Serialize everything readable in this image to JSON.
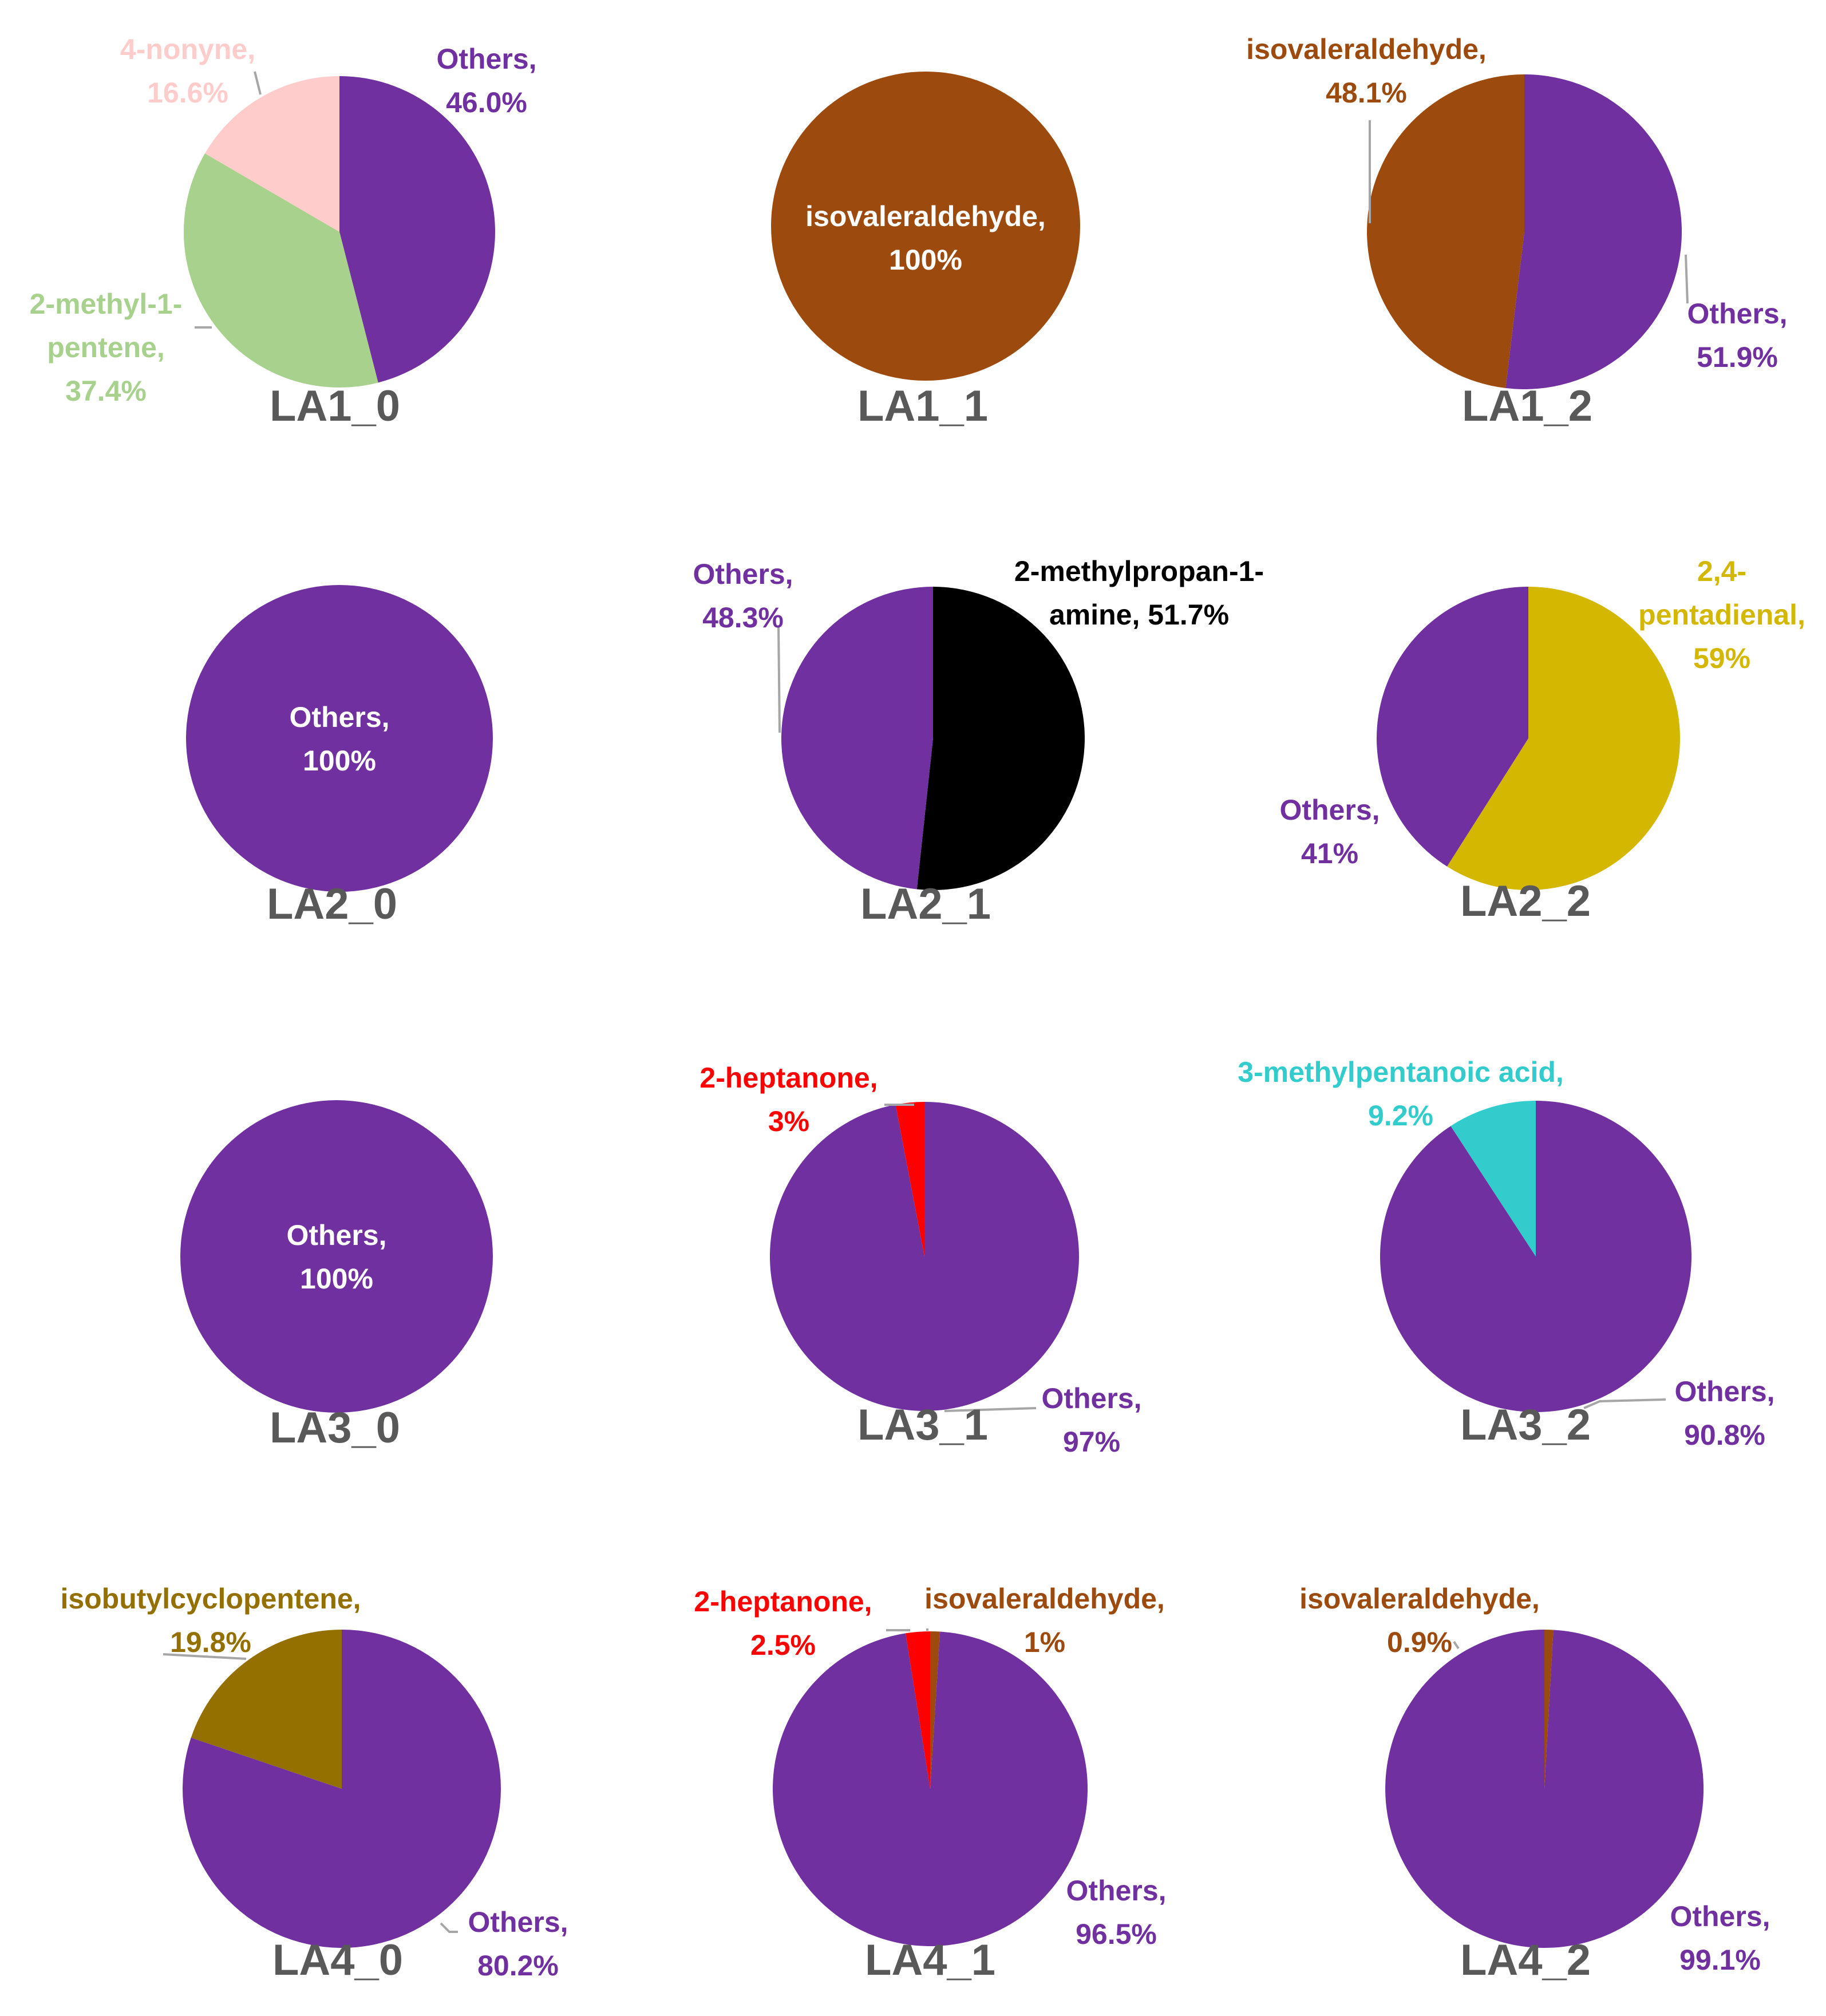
{
  "colors": {
    "Others": "#7030a0",
    "4-nonyne": "#ffcccc",
    "2-methyl-1-pentene": "#a9d18e",
    "isovaleraldehyde": "#9c4a0e",
    "2-methylpropan-1-amine": "#000000",
    "2,4-pentadienal": "#d4b700",
    "2-heptanone": "#ff0000",
    "3-methylpentanoic acid": "#33cccc",
    "isobutylcyclopentene": "#937000",
    "title": "#595959",
    "leader": "#a6a6a6"
  },
  "chart_data": [
    {
      "type": "pie",
      "title": "LA1_0",
      "slices": [
        {
          "name": "Others",
          "value": 46.0,
          "label": [
            "Others,",
            "46.0%"
          ]
        },
        {
          "name": "2-methyl-1-pentene",
          "value": 37.4,
          "label": [
            "2-methyl-1-",
            "pentene,",
            "37.4%"
          ]
        },
        {
          "name": "4-nonyne",
          "value": 16.6,
          "label": [
            "4-nonyne,",
            "16.6%"
          ]
        }
      ]
    },
    {
      "type": "pie",
      "title": "LA1_1",
      "slices": [
        {
          "name": "isovaleraldehyde",
          "value": 100,
          "label": [
            "isovaleraldehyde,",
            "100%"
          ]
        }
      ]
    },
    {
      "type": "pie",
      "title": "LA1_2",
      "slices": [
        {
          "name": "Others",
          "value": 51.9,
          "label": [
            "Others,",
            "51.9%"
          ]
        },
        {
          "name": "isovaleraldehyde",
          "value": 48.1,
          "label": [
            "isovaleraldehyde,",
            "48.1%"
          ]
        }
      ]
    },
    {
      "type": "pie",
      "title": "LA2_0",
      "slices": [
        {
          "name": "Others",
          "value": 100,
          "label": [
            "Others,",
            "100%"
          ]
        }
      ]
    },
    {
      "type": "pie",
      "title": "LA2_1",
      "slices": [
        {
          "name": "2-methylpropan-1-amine",
          "value": 51.7,
          "label": [
            "2-methylpropan-1-",
            "amine, 51.7%"
          ]
        },
        {
          "name": "Others",
          "value": 48.3,
          "label": [
            "Others,",
            "48.3%"
          ]
        }
      ]
    },
    {
      "type": "pie",
      "title": "LA2_2",
      "slices": [
        {
          "name": "2,4-pentadienal",
          "value": 59,
          "label": [
            "2,4-",
            "pentadienal,",
            "59%"
          ]
        },
        {
          "name": "Others",
          "value": 41,
          "label": [
            "Others,",
            "41%"
          ]
        }
      ]
    },
    {
      "type": "pie",
      "title": "LA3_0",
      "slices": [
        {
          "name": "Others",
          "value": 100,
          "label": [
            "Others,",
            "100%"
          ]
        }
      ]
    },
    {
      "type": "pie",
      "title": "LA3_1",
      "slices": [
        {
          "name": "Others",
          "value": 97,
          "label": [
            "Others,",
            "97%"
          ]
        },
        {
          "name": "2-heptanone",
          "value": 3,
          "label": [
            "2-heptanone,",
            "3%"
          ]
        }
      ]
    },
    {
      "type": "pie",
      "title": "LA3_2",
      "slices": [
        {
          "name": "Others",
          "value": 90.8,
          "label": [
            "Others,",
            "90.8%"
          ]
        },
        {
          "name": "3-methylpentanoic acid",
          "value": 9.2,
          "label": [
            "3-methylpentanoic acid,",
            "9.2%"
          ]
        }
      ]
    },
    {
      "type": "pie",
      "title": "LA4_0",
      "slices": [
        {
          "name": "Others",
          "value": 80.2,
          "label": [
            "Others,",
            "80.2%"
          ]
        },
        {
          "name": "isobutylcyclopentene",
          "value": 19.8,
          "label": [
            "isobutylcyclopentene,",
            "19.8%"
          ]
        }
      ]
    },
    {
      "type": "pie",
      "title": "LA4_1",
      "slices": [
        {
          "name": "isovaleraldehyde",
          "value": 1,
          "label": [
            "isovaleraldehyde,",
            "1%"
          ]
        },
        {
          "name": "Others",
          "value": 96.5,
          "label": [
            "Others,",
            "96.5%"
          ]
        },
        {
          "name": "2-heptanone",
          "value": 2.5,
          "label": [
            "2-heptanone,",
            "2.5%"
          ]
        }
      ]
    },
    {
      "type": "pie",
      "title": "LA4_2",
      "slices": [
        {
          "name": "isovaleraldehyde",
          "value": 0.9,
          "label": [
            "isovaleraldehyde,",
            "0.9%"
          ]
        },
        {
          "name": "Others",
          "value": 99.1,
          "label": [
            "Others,",
            "99.1%"
          ]
        }
      ]
    }
  ]
}
